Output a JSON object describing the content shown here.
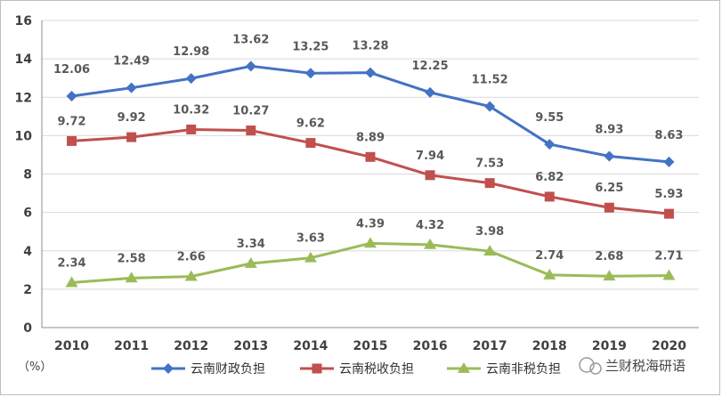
{
  "unit_label": "（%）",
  "watermark": "兰财税海研语",
  "chart_data": {
    "type": "line",
    "x": [
      "2010",
      "2011",
      "2012",
      "2013",
      "2014",
      "2015",
      "2016",
      "2017",
      "2018",
      "2019",
      "2020"
    ],
    "ylim": [
      0,
      16
    ],
    "yticks": [
      "0",
      "2",
      "4",
      "6",
      "8",
      "10",
      "12",
      "14",
      "16"
    ],
    "grid": true,
    "legend_position": "bottom",
    "series": [
      {
        "name": "云南财政负担",
        "color": "#4472c4",
        "marker": "diamond",
        "values": [
          12.06,
          12.49,
          12.98,
          13.62,
          13.25,
          13.28,
          12.25,
          11.52,
          9.55,
          8.93,
          8.63
        ],
        "labels": [
          "12.06",
          "12.49",
          "12.98",
          "13.62",
          "13.25",
          "13.28",
          "12.25",
          "11.52",
          "9.55",
          "8.93",
          "8.63"
        ]
      },
      {
        "name": "云南税收负担",
        "color": "#c0504d",
        "marker": "square",
        "values": [
          9.72,
          9.92,
          10.32,
          10.27,
          9.62,
          8.89,
          7.94,
          7.53,
          6.82,
          6.25,
          5.93
        ],
        "labels": [
          "9.72",
          "9.92",
          "10.32",
          "10.27",
          "9.62",
          "8.89",
          "7.94",
          "7.53",
          "6.82",
          "6.25",
          "5.93"
        ]
      },
      {
        "name": "云南非税负担",
        "color": "#9bbb59",
        "marker": "triangle",
        "values": [
          2.34,
          2.58,
          2.66,
          3.34,
          3.63,
          4.39,
          4.32,
          3.98,
          2.74,
          2.68,
          2.71
        ],
        "labels": [
          "2.34",
          "2.58",
          "2.66",
          "3.34",
          "3.63",
          "4.39",
          "4.32",
          "3.98",
          "2.74",
          "2.68",
          "2.71"
        ]
      }
    ]
  }
}
